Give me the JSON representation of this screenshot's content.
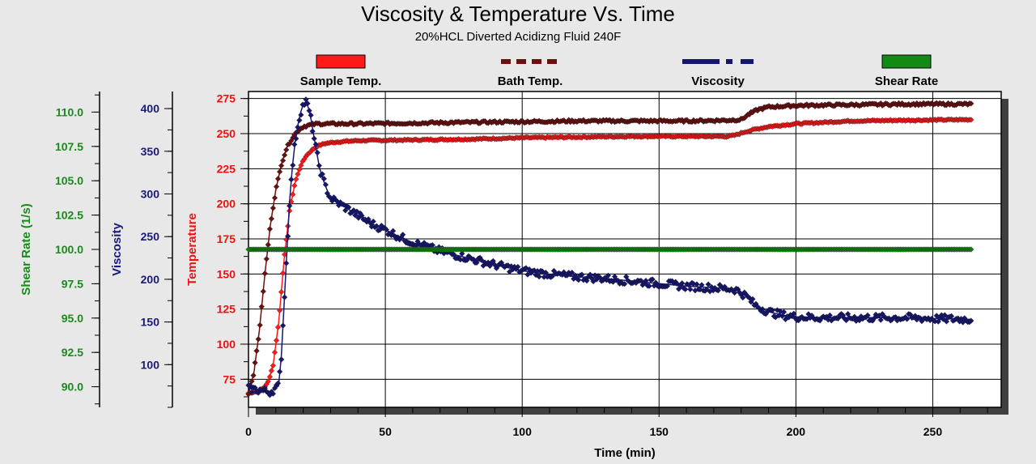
{
  "chart_data": {
    "type": "line",
    "title": "Viscosity & Temperature Vs. Time",
    "subtitle": "20%HCL Diverted Acidizng Fluid 240F",
    "xlabel": "Time (min)",
    "xlim": [
      0,
      275
    ],
    "x_ticks": [
      0,
      50,
      100,
      150,
      200,
      250
    ],
    "grid": true,
    "legend_position": "top",
    "axes": [
      {
        "key": "temp",
        "label": "Temperature",
        "color": "#ee1111",
        "lim": [
          55,
          280
        ],
        "ticks": [
          75,
          100,
          125,
          150,
          175,
          200,
          225,
          250,
          275
        ]
      },
      {
        "key": "visc",
        "label": "Viscosity",
        "color": "#1a1a7a",
        "lim": [
          50,
          420
        ],
        "ticks": [
          100,
          150,
          200,
          250,
          300,
          350,
          400
        ]
      },
      {
        "key": "shear",
        "label": "Shear Rate (1/s)",
        "color": "#1a8a1a",
        "lim": [
          88.5,
          111.5
        ],
        "ticks": [
          "90.0",
          "92.5",
          "95.0",
          "97.5",
          "100.0",
          "102.5",
          "105.0",
          "107.5",
          "110.0"
        ]
      }
    ],
    "series": [
      {
        "name": "Sample Temp.",
        "axis": "temp",
        "color": "#ff1a1a",
        "legend_style": "solid",
        "x": [
          0,
          2,
          5,
          7,
          9,
          11,
          13,
          15,
          17,
          19,
          21,
          23,
          25,
          28,
          32,
          40,
          60,
          80,
          100,
          120,
          140,
          160,
          175,
          178,
          181,
          185,
          190,
          200,
          220,
          240,
          264
        ],
        "y": [
          65,
          66,
          68,
          72,
          85,
          115,
          160,
          195,
          215,
          227,
          234,
          238,
          241,
          243,
          244,
          245,
          245.5,
          246,
          247,
          247.5,
          248,
          248,
          248,
          249,
          251,
          253,
          255,
          257,
          259,
          259.5,
          260
        ]
      },
      {
        "name": "Bath Temp.",
        "axis": "temp",
        "color": "#6b0f0f",
        "legend_style": "dashed",
        "x": [
          0,
          2,
          4,
          6,
          8,
          10,
          12,
          14,
          16,
          18,
          20,
          22,
          25,
          30,
          40,
          60,
          80,
          100,
          120,
          140,
          160,
          175,
          180,
          183,
          186,
          190,
          200,
          220,
          240,
          264
        ],
        "y": [
          65,
          80,
          110,
          150,
          185,
          210,
          228,
          240,
          247,
          252,
          255,
          256,
          257,
          257,
          257,
          257.5,
          258,
          258.5,
          259,
          259,
          259,
          259.5,
          260,
          264,
          267,
          269,
          270,
          270.5,
          271,
          271
        ]
      },
      {
        "name": "Viscosity",
        "axis": "visc",
        "color": "#161670",
        "legend_style": "dashdot",
        "x": [
          0,
          4,
          8,
          11,
          12,
          13,
          14,
          15,
          16,
          17,
          18,
          19,
          20,
          21,
          22,
          23,
          24,
          26,
          28,
          30,
          35,
          40,
          45,
          50,
          55,
          60,
          70,
          80,
          90,
          100,
          110,
          120,
          130,
          140,
          150,
          160,
          170,
          175,
          178,
          182,
          185,
          190,
          195,
          200,
          210,
          220,
          230,
          240,
          250,
          264
        ],
        "y": [
          72,
          70,
          68,
          75,
          110,
          170,
          230,
          290,
          330,
          360,
          380,
          395,
          405,
          408,
          400,
          385,
          365,
          330,
          310,
          295,
          285,
          275,
          265,
          258,
          250,
          243,
          233,
          225,
          217,
          210,
          206,
          203,
          201,
          198,
          195,
          192,
          190,
          189,
          188,
          180,
          170,
          162,
          158,
          156,
          155,
          155,
          155,
          155,
          154,
          153
        ]
      },
      {
        "name": "Shear Rate",
        "axis": "shear",
        "color": "#138a13",
        "legend_style": "solid",
        "x": [
          0,
          264
        ],
        "y": [
          100,
          100
        ]
      }
    ]
  }
}
